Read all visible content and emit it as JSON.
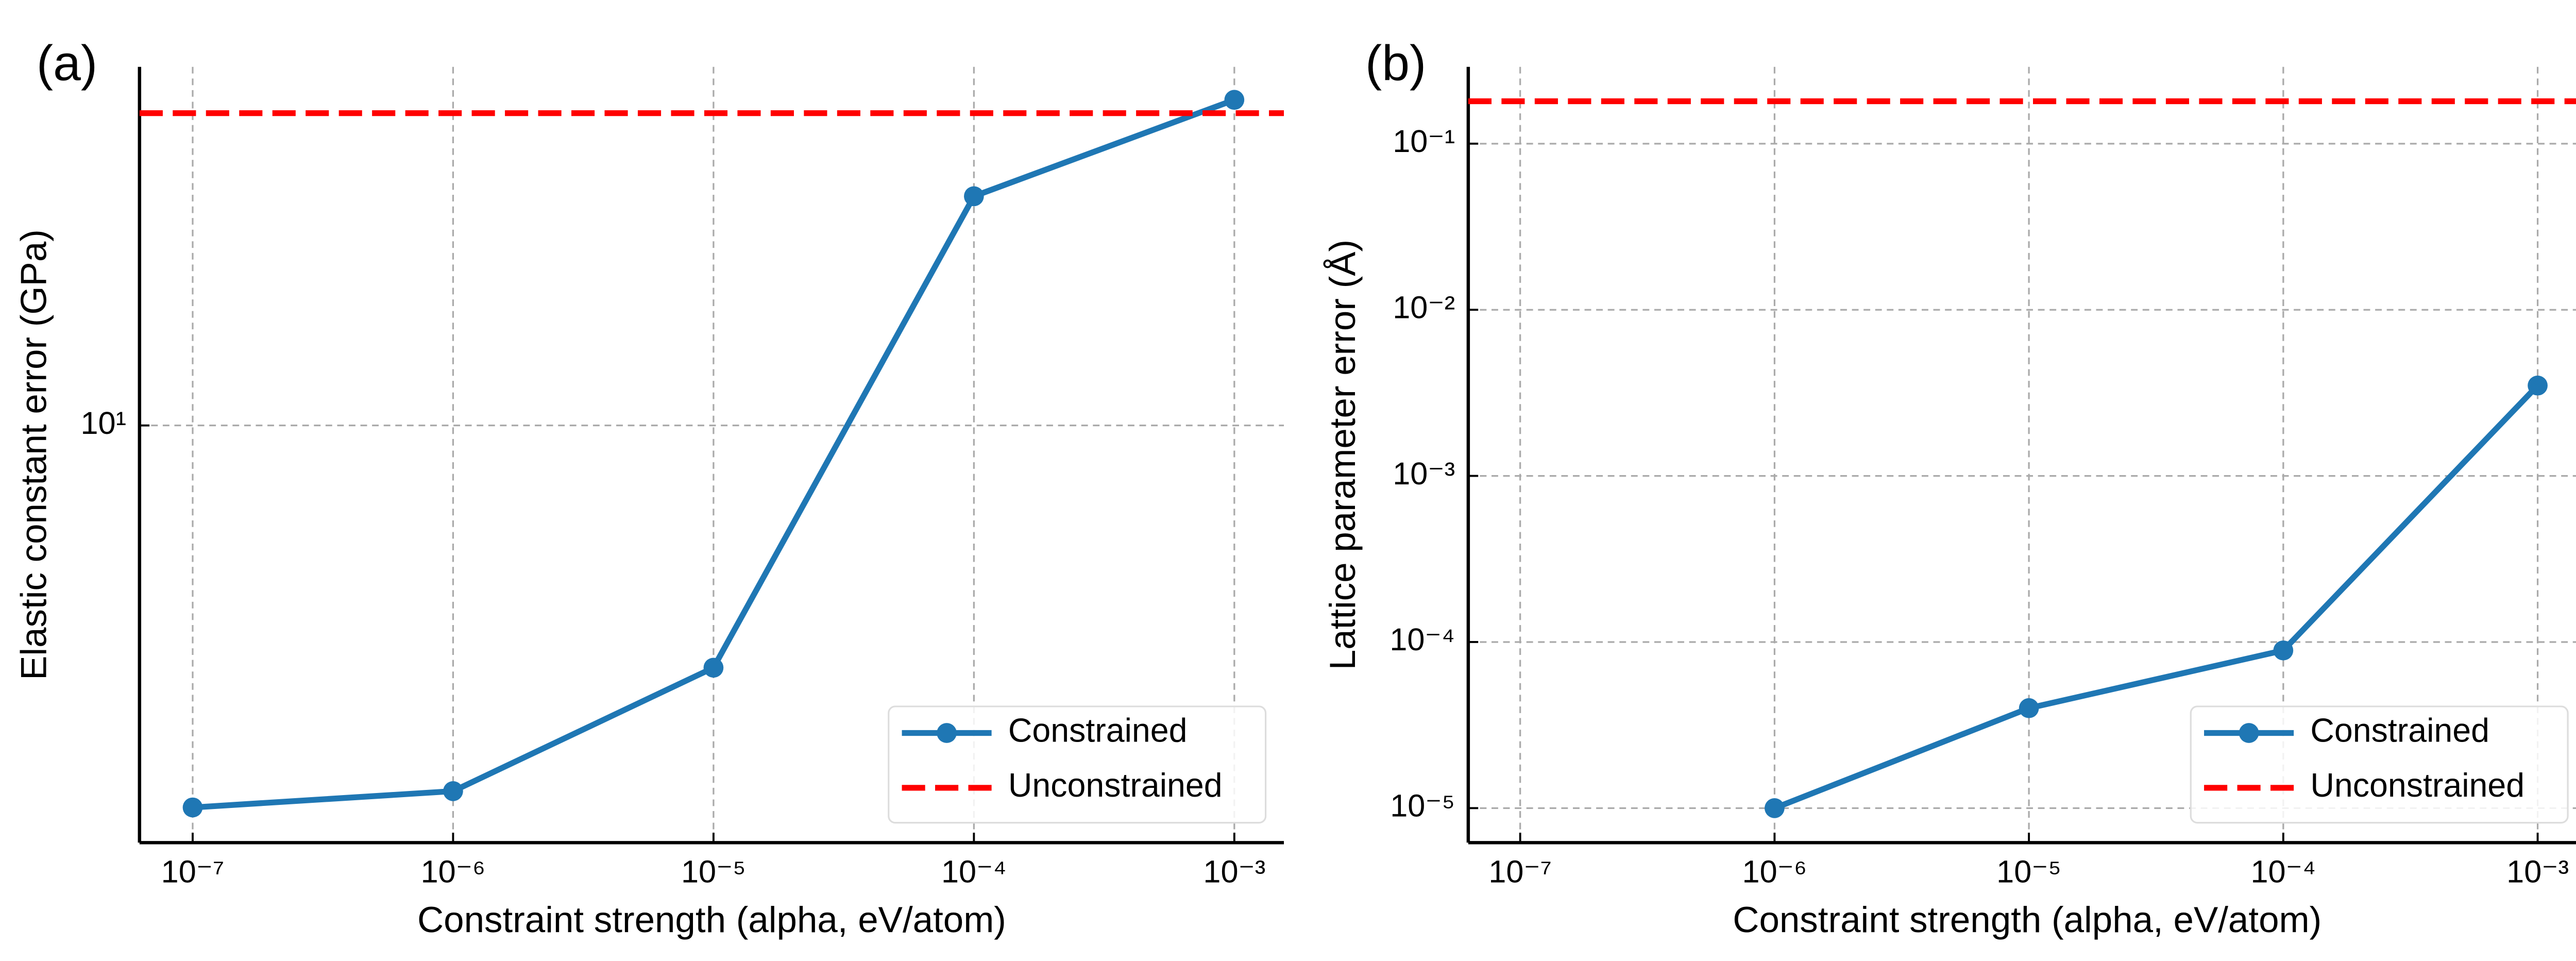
{
  "chart_data": [
    {
      "type": "line",
      "panel_label": "(a)",
      "x_label": "Constraint strength (alpha, eV/atom)",
      "y_label": "Elastic constant error (GPa)",
      "xscale": "log",
      "yscale": "log",
      "grid": true,
      "legend": "lower right",
      "x": [
        1e-07,
        1e-06,
        1e-05,
        0.0001,
        0.001
      ],
      "xlim": [
        6.25e-08,
        0.00155
      ],
      "xticks": [
        {
          "value": 1e-07,
          "label": "10⁻⁷"
        },
        {
          "value": 1e-06,
          "label": "10⁻⁶"
        },
        {
          "value": 1e-05,
          "label": "10⁻⁵"
        },
        {
          "value": 0.0001,
          "label": "10⁻⁴"
        },
        {
          "value": 0.001,
          "label": "10⁻³"
        }
      ],
      "ylim": [
        1.64,
        47.3
      ],
      "yticks": [
        {
          "value": 10,
          "label": "10¹"
        }
      ],
      "series": [
        {
          "name": "Constrained",
          "color": "#1f77b4",
          "values": [
            1.91,
            2.05,
            3.5,
            27,
            41
          ]
        },
        {
          "name": "Unconstrained",
          "color": "#ff0000",
          "linestyle": "dashed",
          "hline": 38.7
        }
      ]
    },
    {
      "type": "line",
      "panel_label": "(b)",
      "x_label": "Constraint strength (alpha, eV/atom)",
      "y_label": "Lattice parameter error (Å)",
      "xscale": "log",
      "yscale": "log",
      "grid": true,
      "legend": "lower right",
      "x": [
        1e-07,
        1e-06,
        1e-05,
        0.0001,
        0.001
      ],
      "xlim": [
        6.25e-08,
        0.00155
      ],
      "xticks": [
        {
          "value": 1e-07,
          "label": "10⁻⁷"
        },
        {
          "value": 1e-06,
          "label": "10⁻⁶"
        },
        {
          "value": 1e-05,
          "label": "10⁻⁵"
        },
        {
          "value": 0.0001,
          "label": "10⁻⁴"
        },
        {
          "value": 0.001,
          "label": "10⁻³"
        }
      ],
      "ylim": [
        6.2e-06,
        0.29
      ],
      "yticks": [
        {
          "value": 1e-05,
          "label": "10⁻⁵"
        },
        {
          "value": 0.0001,
          "label": "10⁻⁴"
        },
        {
          "value": 0.001,
          "label": "10⁻³"
        },
        {
          "value": 0.01,
          "label": "10⁻²"
        },
        {
          "value": 0.1,
          "label": "10⁻¹"
        }
      ],
      "series": [
        {
          "name": "Constrained",
          "color": "#1f77b4",
          "values": [
            null,
            1e-05,
            4e-05,
            8.9e-05,
            0.0035
          ]
        },
        {
          "name": "Unconstrained",
          "color": "#ff0000",
          "linestyle": "dashed",
          "hline": 0.18
        }
      ]
    }
  ]
}
